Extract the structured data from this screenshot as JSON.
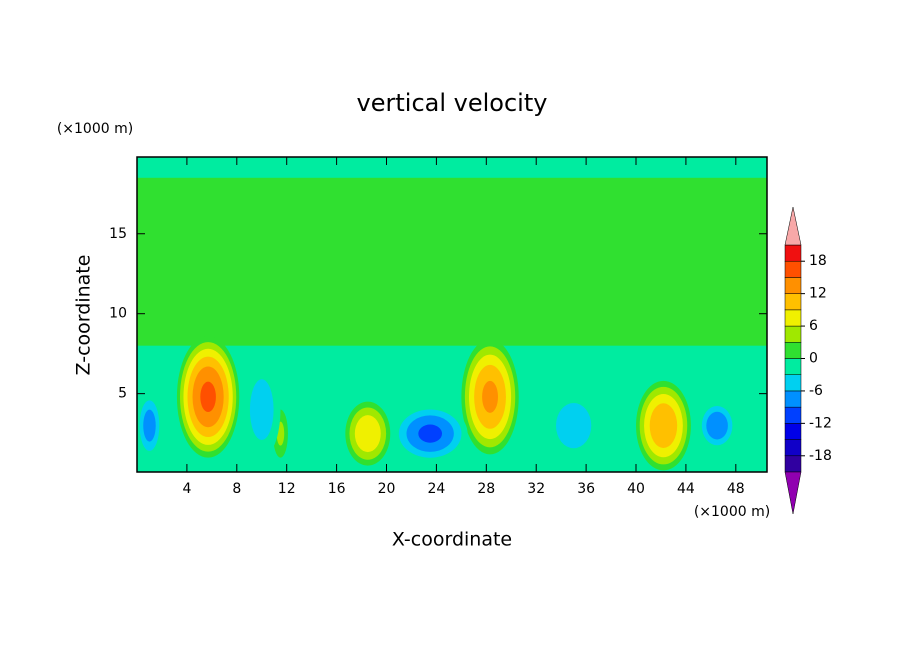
{
  "chart_data": {
    "type": "contour",
    "title": "vertical velocity",
    "x_label": "X-coordinate",
    "y_label": "Z-coordinate",
    "x_unit": "(×1000 m)",
    "y_unit": "(×1000 m)",
    "xlim": [
      0,
      50.5
    ],
    "ylim": [
      0.1,
      19.8
    ],
    "xticks": [
      4,
      8,
      12,
      16,
      20,
      24,
      28,
      32,
      36,
      40,
      44,
      48
    ],
    "yticks": [
      5,
      10,
      15
    ],
    "levels": [
      -21,
      -18,
      -15,
      -12,
      -9,
      -6,
      -3,
      0,
      3,
      6,
      9,
      12,
      15,
      18,
      21
    ],
    "colors": [
      "#3000a0",
      "#1000c8",
      "#0000e8",
      "#0040ff",
      "#0090ff",
      "#00d0f0",
      "#00eca0",
      "#30e030",
      "#a0e800",
      "#f0f000",
      "#ffc000",
      "#ff9000",
      "#ff5000",
      "#f01010"
    ],
    "under_color": "#9000b0",
    "over_color": "#f8a8a8",
    "colorbar_ticks": [
      -18,
      -12,
      -6,
      0,
      6,
      12,
      18
    ],
    "layers": [
      {
        "zlim": [
          0.1,
          19.8
        ],
        "value": -1.5
      },
      {
        "zlim": [
          8,
          18.5
        ],
        "value": 1.5
      }
    ],
    "cells": [
      {
        "x": 5.7,
        "z": 4.8,
        "rx": 2.5,
        "rz": 3.8,
        "value": 16
      },
      {
        "x": 28.3,
        "z": 4.8,
        "rx": 2.3,
        "rz": 3.6,
        "value": 13
      },
      {
        "x": 42.2,
        "z": 3,
        "rx": 2.2,
        "rz": 2.8,
        "value": 12
      },
      {
        "x": 18.5,
        "z": 2.5,
        "rx": 1.8,
        "rz": 2,
        "value": 9
      },
      {
        "x": 11.5,
        "z": 2.5,
        "rx": 0.6,
        "rz": 1.5,
        "value": 4
      },
      {
        "x": 1,
        "z": 3,
        "rx": 1,
        "rz": 2,
        "value": -8
      },
      {
        "x": 10,
        "z": 4,
        "rx": 1.5,
        "rz": 3,
        "value": -5
      },
      {
        "x": 23.5,
        "z": 2.5,
        "rx": 3,
        "rz": 1.8,
        "value": -10
      },
      {
        "x": 35,
        "z": 3,
        "rx": 2,
        "rz": 2,
        "value": -6
      },
      {
        "x": 46.5,
        "z": 3,
        "rx": 1.5,
        "rz": 1.5,
        "value": -9
      }
    ]
  }
}
